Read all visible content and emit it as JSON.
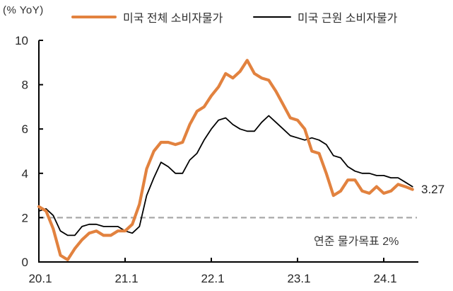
{
  "header": {
    "unit_label": "(% YoY)"
  },
  "chart_data": {
    "type": "line",
    "title": "",
    "unit_label": "(% YoY)",
    "x_start": "2020-01",
    "x_end": "2024-05",
    "x_tick_labels": [
      "20.1",
      "21.1",
      "22.1",
      "23.1",
      "24.1"
    ],
    "x_tick_month_index": [
      0,
      12,
      24,
      36,
      48
    ],
    "y_ticks": [
      0,
      2,
      4,
      6,
      8,
      10
    ],
    "ylim": [
      0,
      10
    ],
    "grid": false,
    "legend_position": "top",
    "series": [
      {
        "name": "미국 전체 소비자물가",
        "color": "#E2823F",
        "stroke_width": 4.2,
        "values": [
          2.5,
          2.3,
          1.5,
          0.3,
          0.1,
          0.6,
          1.0,
          1.3,
          1.4,
          1.2,
          1.2,
          1.4,
          1.4,
          1.7,
          2.6,
          4.2,
          5.0,
          5.4,
          5.4,
          5.3,
          5.4,
          6.2,
          6.8,
          7.0,
          7.5,
          7.9,
          8.5,
          8.3,
          8.6,
          9.1,
          8.5,
          8.3,
          8.2,
          7.7,
          7.1,
          6.5,
          6.4,
          6.0,
          5.0,
          4.9,
          4.0,
          3.0,
          3.2,
          3.7,
          3.7,
          3.2,
          3.1,
          3.4,
          3.1,
          3.2,
          3.5,
          3.4,
          3.27
        ]
      },
      {
        "name": "미국 근원 소비자물가",
        "color": "#000000",
        "stroke_width": 1.8,
        "values": [
          2.3,
          2.4,
          2.1,
          1.4,
          1.2,
          1.2,
          1.6,
          1.7,
          1.7,
          1.6,
          1.6,
          1.6,
          1.4,
          1.3,
          1.6,
          3.0,
          3.8,
          4.5,
          4.3,
          4.0,
          4.0,
          4.6,
          4.9,
          5.5,
          6.0,
          6.4,
          6.5,
          6.2,
          6.0,
          5.9,
          5.9,
          6.3,
          6.6,
          6.3,
          6.0,
          5.7,
          5.6,
          5.5,
          5.6,
          5.5,
          5.3,
          4.8,
          4.7,
          4.3,
          4.1,
          4.0,
          4.0,
          3.9,
          3.9,
          3.8,
          3.8,
          3.6,
          3.4
        ]
      }
    ],
    "target_line": {
      "value": 2,
      "label": "연준 물가목표 2%",
      "color": "#A8A8A8"
    },
    "end_value_label": "3.27",
    "axis_color": "#000000",
    "tick_label_color": "#262626",
    "annotation_color": "#3a3a3a"
  }
}
